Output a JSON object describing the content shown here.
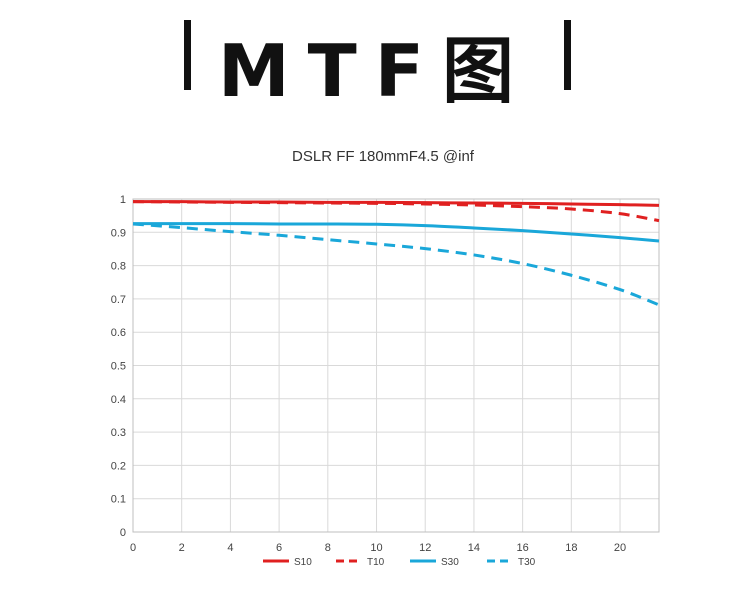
{
  "header": {
    "title": "MTF图"
  },
  "chart_data": {
    "type": "line",
    "title": "DSLR FF 180mmF4.5 @inf",
    "xlabel": "",
    "ylabel": "",
    "xlim": [
      0,
      21.6
    ],
    "ylim": [
      0,
      1
    ],
    "xticks": [
      0,
      2,
      4,
      6,
      8,
      10,
      12,
      14,
      16,
      18,
      20
    ],
    "yticks": [
      0,
      0.1,
      0.2,
      0.3,
      0.4,
      0.5,
      0.6,
      0.7,
      0.8,
      0.9,
      1
    ],
    "ytick_labels": [
      "0",
      "0.1",
      "0.2",
      "0.3",
      "0.4",
      "0.5",
      "0.6",
      "0.7",
      "0.8",
      "0.9",
      "1"
    ],
    "grid": true,
    "legend_position": "bottom",
    "x": [
      0,
      2,
      4,
      6,
      8,
      10,
      12,
      14,
      16,
      18,
      20,
      21.6
    ],
    "series": [
      {
        "name": "S10",
        "color": "#e02020",
        "dash": false,
        "values": [
          0.992,
          0.992,
          0.991,
          0.991,
          0.99,
          0.99,
          0.989,
          0.988,
          0.987,
          0.985,
          0.983,
          0.981
        ]
      },
      {
        "name": "T10",
        "color": "#e02020",
        "dash": true,
        "values": [
          0.992,
          0.991,
          0.99,
          0.989,
          0.988,
          0.987,
          0.985,
          0.982,
          0.977,
          0.97,
          0.956,
          0.935
        ]
      },
      {
        "name": "S30",
        "color": "#1aa7d9",
        "dash": false,
        "values": [
          0.926,
          0.926,
          0.926,
          0.925,
          0.925,
          0.924,
          0.92,
          0.913,
          0.905,
          0.895,
          0.884,
          0.874
        ]
      },
      {
        "name": "T30",
        "color": "#1aa7d9",
        "dash": true,
        "values": [
          0.925,
          0.914,
          0.902,
          0.891,
          0.878,
          0.865,
          0.851,
          0.832,
          0.806,
          0.771,
          0.728,
          0.682
        ]
      }
    ]
  }
}
